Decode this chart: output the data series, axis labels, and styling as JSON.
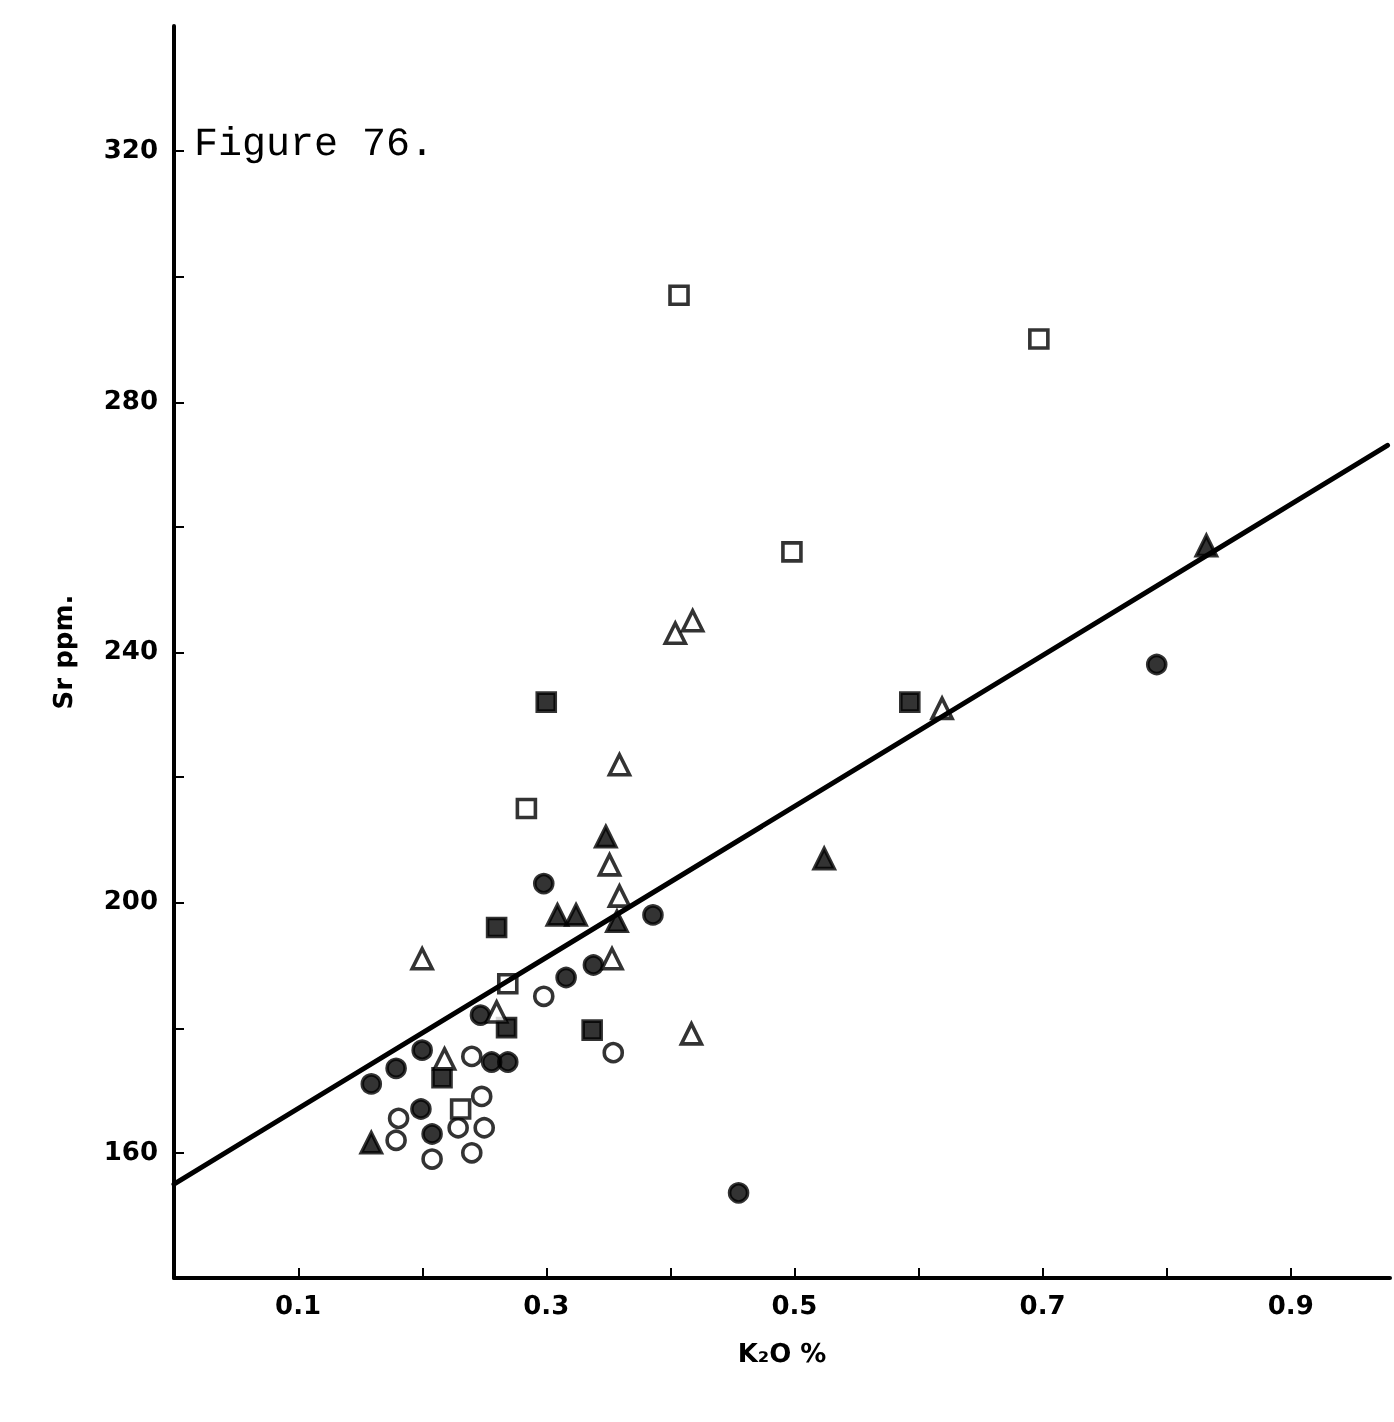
{
  "chart_data": {
    "type": "scatter",
    "title": "Figure 76.",
    "xlabel": "K₂O %",
    "ylabel": "Sr ppm.",
    "xlim": [
      0,
      0.98
    ],
    "ylim": [
      140,
      340
    ],
    "xticks": [
      0.1,
      {
        "value": 0.2,
        "label": null
      },
      0.3,
      {
        "value": 0.4,
        "label": null
      },
      0.5,
      {
        "value": 0.6,
        "label": null
      },
      0.7,
      {
        "value": 0.8,
        "label": null
      },
      0.9
    ],
    "yticks": [
      160,
      {
        "value": 180,
        "label": null
      },
      200,
      {
        "value": 220,
        "label": null
      },
      240,
      {
        "value": 260,
        "label": null
      },
      280,
      {
        "value": 300,
        "label": null
      },
      320
    ],
    "grid": false,
    "series": [
      {
        "marker": "circle",
        "color": "#000000",
        "x": [
          0.298,
          0.386,
          0.338,
          0.316,
          0.247,
          0.2,
          0.256,
          0.269,
          0.179,
          0.159,
          0.199,
          0.208,
          0.455,
          0.792
        ],
        "values": [
          203,
          198,
          190,
          188,
          182,
          176.4,
          174.5,
          174.5,
          173.5,
          171,
          167,
          163,
          153.6,
          238
        ]
      },
      {
        "marker": "circle",
        "color": "#ffffff",
        "x": [
          0.298,
          0.354,
          0.24,
          0.248,
          0.181,
          0.229,
          0.25,
          0.179,
          0.208,
          0.24
        ],
        "values": [
          185,
          176,
          175.4,
          169,
          165.5,
          164,
          164,
          162,
          159,
          160
        ]
      },
      {
        "marker": "square",
        "color": "#000000",
        "x": [
          0.3,
          0.26,
          0.268,
          0.337,
          0.216,
          0.593
        ],
        "values": [
          232,
          196,
          180,
          179.6,
          172,
          232
        ]
      },
      {
        "marker": "square",
        "color": "#ffffff",
        "x": [
          0.284,
          0.269,
          0.231,
          0.407,
          0.697,
          0.498
        ],
        "values": [
          215,
          187,
          167,
          297,
          290,
          256
        ]
      },
      {
        "marker": "triangle",
        "color": "#000000",
        "x": [
          0.348,
          0.309,
          0.324,
          0.357,
          0.159,
          0.524,
          0.832
        ],
        "values": [
          210.5,
          198,
          198,
          197,
          161.6,
          207,
          257
        ]
      },
      {
        "marker": "triangle",
        "color": "#ffffff",
        "x": [
          0.359,
          0.351,
          0.359,
          0.2,
          0.353,
          0.26,
          0.417,
          0.218,
          0.404,
          0.418,
          0.619
        ],
        "values": [
          222,
          206,
          201,
          191,
          191,
          182.5,
          179,
          175,
          243,
          245,
          231
        ]
      },
      {
        "type": "line",
        "marker": "none",
        "line_style": "solid",
        "color": "#000000",
        "x": [
          0,
          0.978
        ],
        "values": [
          155,
          273
        ]
      }
    ]
  }
}
